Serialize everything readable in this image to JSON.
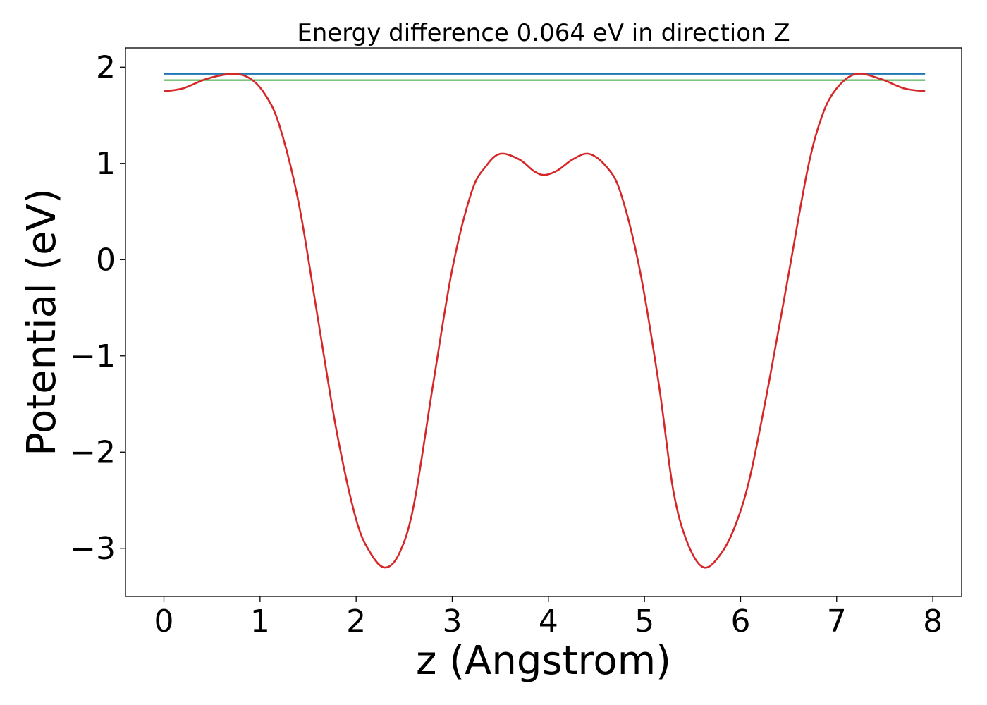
{
  "chart_data": {
    "type": "line",
    "title": "Energy difference 0.064 eV in direction Z",
    "xlabel": "z (Angstrom)",
    "ylabel": "Potential (eV)",
    "xlim": [
      -0.4,
      8.3
    ],
    "ylim": [
      -3.5,
      2.2
    ],
    "xticks": [
      0,
      1,
      2,
      3,
      4,
      5,
      6,
      7,
      8
    ],
    "xtick_labels": [
      "0",
      "1",
      "2",
      "3",
      "4",
      "5",
      "6",
      "7",
      "8"
    ],
    "yticks": [
      -3,
      -2,
      -1,
      0,
      1,
      2
    ],
    "ytick_labels": [
      "−3",
      "−2",
      "−1",
      "0",
      "1",
      "2"
    ],
    "grid": false,
    "legend": "none",
    "series": [
      {
        "color": "#1f77b4",
        "style": "horizontal",
        "x": [
          0,
          7.92
        ],
        "y": [
          1.93,
          1.93
        ]
      },
      {
        "color": "#2ca02c",
        "style": "horizontal",
        "x": [
          0,
          7.92
        ],
        "y": [
          1.866,
          1.866
        ]
      },
      {
        "color": "#d62728",
        "style": "curve",
        "x": [
          0.0,
          0.2,
          0.45,
          0.72,
          0.9,
          1.05,
          1.2,
          1.4,
          1.6,
          1.8,
          2.0,
          2.15,
          2.3,
          2.45,
          2.6,
          2.8,
          3.0,
          3.2,
          3.35,
          3.5,
          3.7,
          3.85,
          3.96,
          4.1,
          4.25,
          4.42,
          4.6,
          4.75,
          4.95,
          5.15,
          5.3,
          5.45,
          5.62,
          5.8,
          5.95,
          6.1,
          6.3,
          6.5,
          6.7,
          6.85,
          7.0,
          7.2,
          7.45,
          7.7,
          7.92
        ],
        "y": [
          1.75,
          1.78,
          1.88,
          1.93,
          1.88,
          1.72,
          1.4,
          0.6,
          -0.6,
          -1.8,
          -2.7,
          -3.05,
          -3.2,
          -3.05,
          -2.55,
          -1.3,
          -0.1,
          0.7,
          0.97,
          1.1,
          1.04,
          0.92,
          0.88,
          0.93,
          1.04,
          1.1,
          0.97,
          0.7,
          -0.1,
          -1.3,
          -2.4,
          -2.95,
          -3.2,
          -3.05,
          -2.75,
          -2.25,
          -1.25,
          -0.15,
          0.95,
          1.5,
          1.78,
          1.93,
          1.88,
          1.78,
          1.75
        ]
      }
    ]
  }
}
